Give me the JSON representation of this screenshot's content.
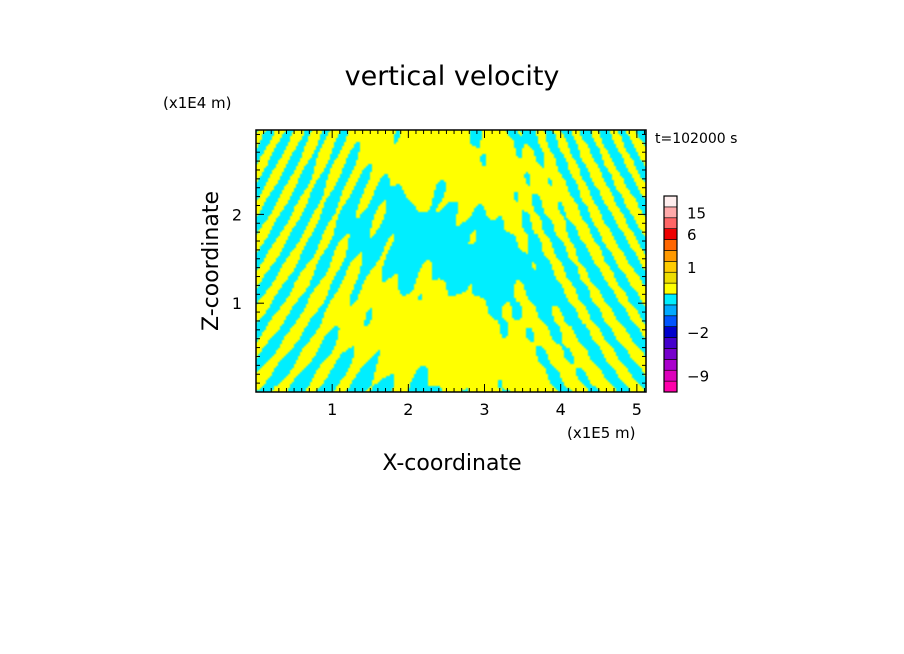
{
  "chart_data": {
    "type": "heatmap",
    "title": "vertical velocity",
    "xlabel": "X-coordinate",
    "ylabel": "Z-coordinate",
    "x_unit": "(x1E5 m)",
    "y_unit": "(x1E4 m)",
    "time_label": "t=102000 s",
    "xlim": [
      0,
      5.12
    ],
    "ylim": [
      0,
      2.95
    ],
    "x_ticks": [
      1,
      2,
      3,
      4,
      5
    ],
    "y_ticks": [
      1,
      2
    ],
    "x_tick_labels": [
      "1",
      "2",
      "3",
      "4",
      "5"
    ],
    "y_tick_labels": [
      "1",
      "2"
    ],
    "contour_colors": {
      "positive": "#ffff00",
      "negative": "#00eeff"
    },
    "colorbar": {
      "bins": [
        {
          "level": -12,
          "color": "#ff00aa"
        },
        {
          "level": -9,
          "color": "#dd00bb"
        },
        {
          "level": -6,
          "color": "#aa00cc"
        },
        {
          "level": -4,
          "color": "#7700cc"
        },
        {
          "level": -3,
          "color": "#4400cc"
        },
        {
          "level": -2,
          "color": "#0000cc"
        },
        {
          "level": -1.5,
          "color": "#0055ff"
        },
        {
          "level": -1,
          "color": "#00aaff"
        },
        {
          "level": -0.5,
          "color": "#00eeff"
        },
        {
          "level": 0,
          "color": "#ffff00"
        },
        {
          "level": 0.5,
          "color": "#eedd00"
        },
        {
          "level": 1,
          "color": "#ffcc00"
        },
        {
          "level": 1.5,
          "color": "#ff9900"
        },
        {
          "level": 3,
          "color": "#ff6600"
        },
        {
          "level": 6,
          "color": "#ee0000"
        },
        {
          "level": 10,
          "color": "#ff6666"
        },
        {
          "level": 15,
          "color": "#ffaaaa"
        },
        {
          "level": 20,
          "color": "#ffeeee"
        }
      ],
      "tick_labels": [
        {
          "level": 15,
          "text": "15"
        },
        {
          "level": 6,
          "text": "6"
        },
        {
          "level": 1,
          "text": "1"
        },
        {
          "level": -2,
          "text": "−2"
        },
        {
          "level": -9,
          "text": "−9"
        }
      ]
    }
  }
}
